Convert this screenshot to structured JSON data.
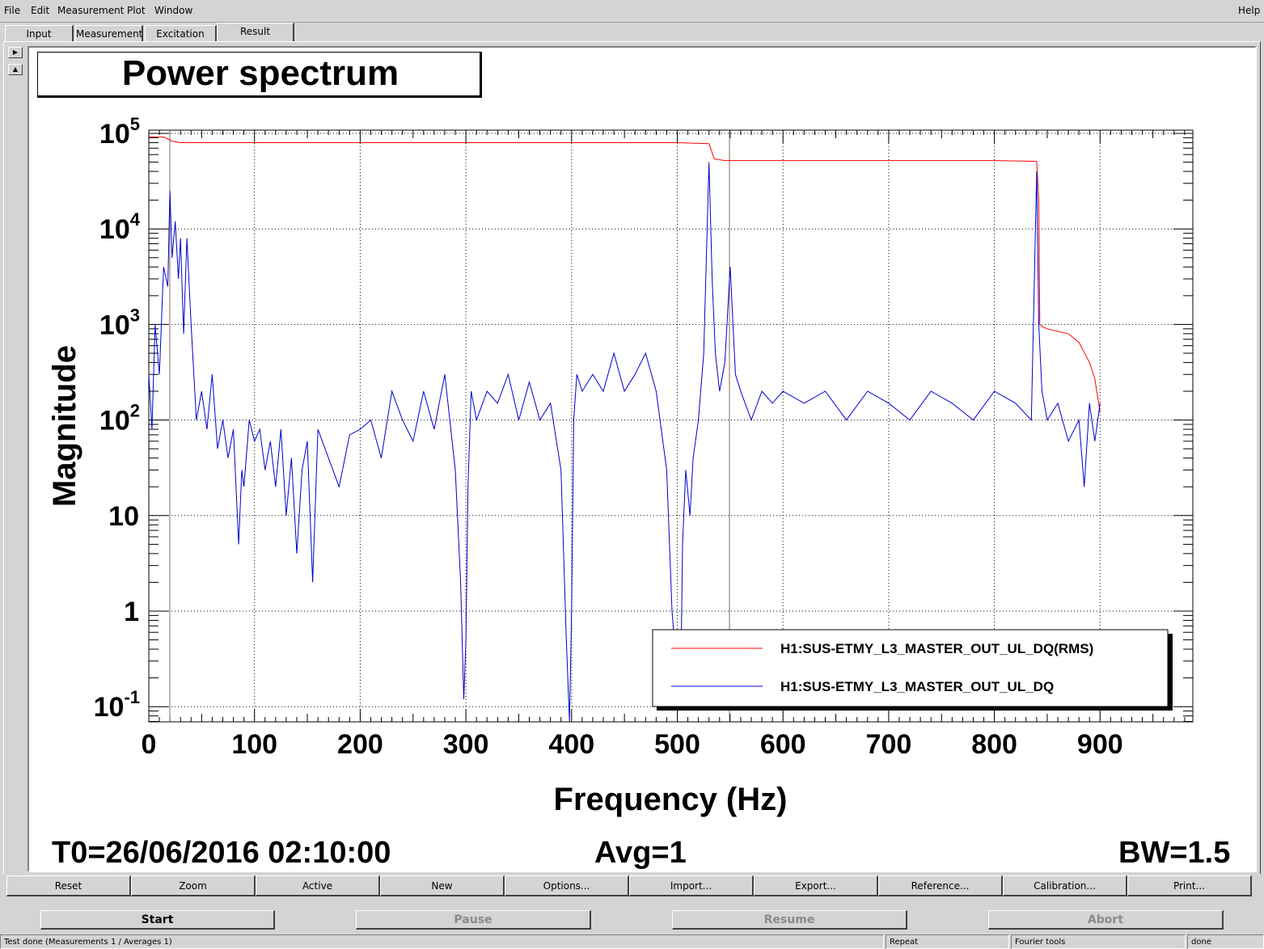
{
  "menu": {
    "file": "File",
    "edit": "Edit",
    "measurement": "Measurement",
    "plot": "Plot",
    "window": "Window",
    "help": "Help"
  },
  "tabs": [
    "Input",
    "Measurement",
    "Excitation",
    "Result"
  ],
  "plot": {
    "title": "Power spectrum",
    "t0": "T0=26/06/2016 02:10:00",
    "avg": "Avg=1",
    "bw": "BW=1.5",
    "legend": [
      "H1:SUS-ETMY_L3_MASTER_OUT_UL_DQ(RMS)",
      "H1:SUS-ETMY_L3_MASTER_OUT_UL_DQ"
    ],
    "xlabel": "Frequency (Hz)",
    "ylabel": "Magnitude",
    "xticks": [
      "0",
      "100",
      "200",
      "300",
      "400",
      "500",
      "600",
      "700",
      "800",
      "900"
    ],
    "yticks": [
      {
        "base": "10",
        "exp": "-1"
      },
      {
        "base": "1",
        "exp": ""
      },
      {
        "base": "10",
        "exp": ""
      },
      {
        "base": "10",
        "exp": "2"
      },
      {
        "base": "10",
        "exp": "3"
      },
      {
        "base": "10",
        "exp": "4"
      },
      {
        "base": "10",
        "exp": "5"
      }
    ]
  },
  "chart_data": {
    "type": "line",
    "title": "Power spectrum",
    "xlabel": "Frequency (Hz)",
    "ylabel": "Magnitude",
    "xlim": [
      0,
      990
    ],
    "ylim": [
      0.07,
      110000
    ],
    "yscale": "log",
    "grid": true,
    "legend_position": "bottom-right",
    "series": [
      {
        "name": "H1:SUS-ETMY_L3_MASTER_OUT_UL_DQ(RMS)",
        "color": "#ff0000",
        "x": [
          0,
          15,
          22,
          30,
          100,
          200,
          300,
          400,
          500,
          530,
          535,
          545,
          600,
          700,
          800,
          840,
          842,
          843,
          845,
          850,
          870,
          880,
          890,
          895,
          900
        ],
        "y": [
          92000,
          91000,
          83000,
          80000,
          80000,
          80000,
          80000,
          80000,
          80000,
          78000,
          54000,
          52000,
          52000,
          52000,
          52000,
          51000,
          20000,
          1000,
          950,
          900,
          800,
          650,
          400,
          270,
          120
        ]
      },
      {
        "name": "H1:SUS-ETMY_L3_MASTER_OUT_UL_DQ",
        "color": "#0000cc",
        "x": [
          0,
          3,
          6,
          10,
          14,
          18,
          20,
          22,
          25,
          28,
          30,
          33,
          36,
          40,
          45,
          50,
          55,
          60,
          65,
          70,
          75,
          80,
          85,
          88,
          90,
          95,
          100,
          105,
          110,
          115,
          120,
          125,
          130,
          135,
          140,
          145,
          150,
          155,
          160,
          170,
          180,
          190,
          200,
          210,
          220,
          230,
          240,
          250,
          260,
          270,
          280,
          290,
          295,
          298,
          300,
          302,
          305,
          310,
          320,
          330,
          340,
          350,
          360,
          370,
          380,
          390,
          395,
          398,
          400,
          402,
          405,
          410,
          420,
          430,
          440,
          450,
          460,
          470,
          480,
          490,
          495,
          500,
          503,
          505,
          508,
          512,
          515,
          520,
          525,
          530,
          533,
          536,
          540,
          545,
          550,
          555,
          560,
          570,
          580,
          590,
          600,
          620,
          640,
          660,
          680,
          700,
          720,
          740,
          760,
          780,
          800,
          820,
          835,
          840,
          842,
          845,
          850,
          860,
          870,
          880,
          885,
          890,
          895,
          900
        ],
        "y": [
          300,
          80,
          1000,
          300,
          4000,
          2500,
          25000,
          5000,
          12000,
          3000,
          8000,
          800,
          8000,
          1000,
          100,
          200,
          80,
          300,
          50,
          100,
          40,
          80,
          5,
          30,
          20,
          100,
          60,
          80,
          30,
          60,
          20,
          80,
          10,
          40,
          4,
          30,
          60,
          2,
          80,
          40,
          20,
          70,
          80,
          100,
          40,
          200,
          100,
          60,
          200,
          80,
          300,
          30,
          2,
          0.12,
          0.5,
          20,
          200,
          100,
          200,
          150,
          300,
          100,
          250,
          100,
          150,
          30,
          0.5,
          0.07,
          1,
          100,
          300,
          200,
          300,
          200,
          500,
          200,
          300,
          500,
          200,
          30,
          1,
          0.2,
          0.1,
          5,
          30,
          10,
          40,
          100,
          500,
          50000,
          3000,
          500,
          200,
          400,
          4000,
          300,
          200,
          100,
          200,
          150,
          200,
          150,
          200,
          100,
          200,
          150,
          100,
          200,
          150,
          100,
          200,
          150,
          100,
          40000,
          1000,
          200,
          100,
          150,
          60,
          100,
          20,
          150,
          60,
          150
        ]
      }
    ]
  },
  "toolbar": [
    "Reset",
    "Zoom",
    "Active",
    "New",
    "Options...",
    "Import...",
    "Export...",
    "Reference...",
    "Calibration...",
    "Print..."
  ],
  "controls": {
    "start": "Start",
    "pause": "Pause",
    "resume": "Resume",
    "abort": "Abort"
  },
  "status": {
    "main": "Test done (Measurements 1 / Averages 1)",
    "repeat": "Repeat",
    "tools": "Fourier tools",
    "state": "done"
  }
}
